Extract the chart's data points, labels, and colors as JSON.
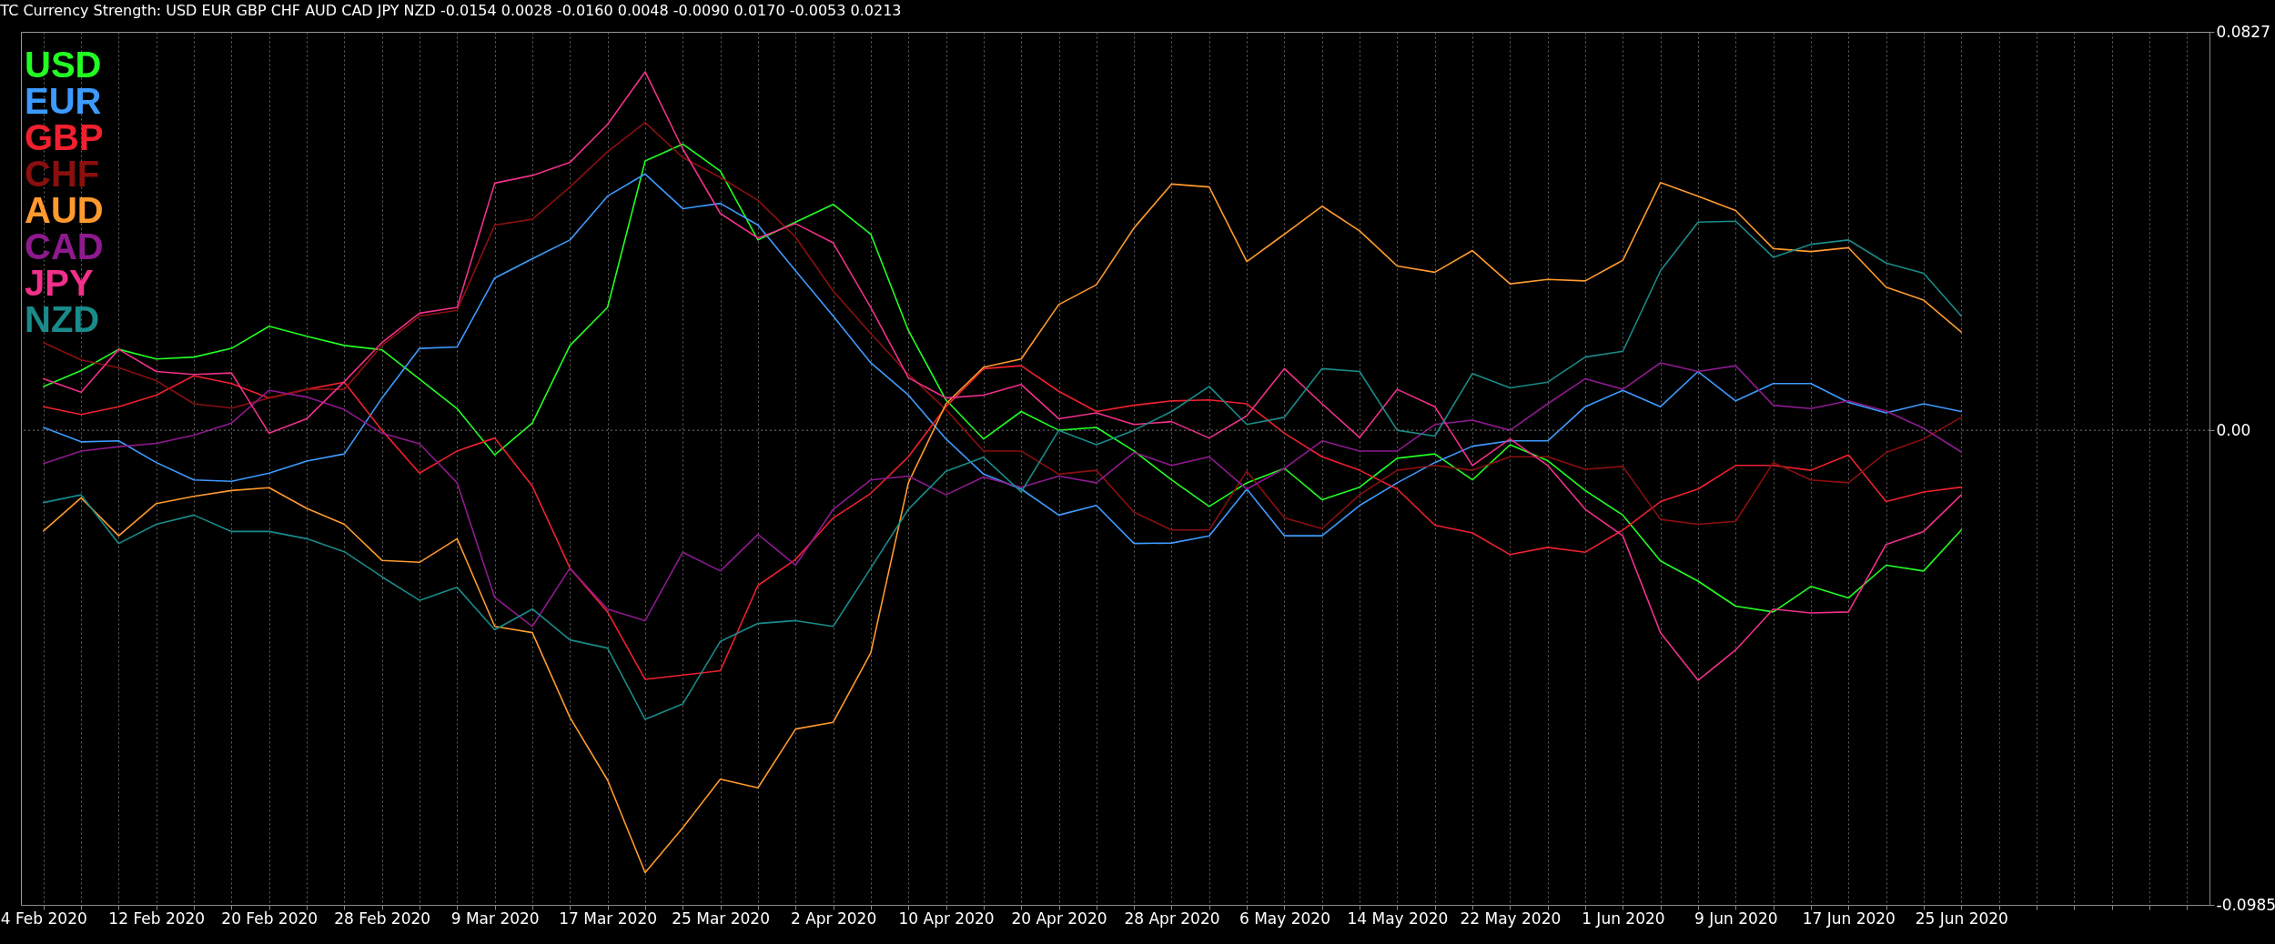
{
  "chart_data": {
    "type": "line",
    "title": "TC Currency Strength:   USD EUR GBP CHF AUD CAD JPY NZD -0.0154 0.0028 -0.0160 0.0048 -0.0090 0.0170 -0.0053 0.0213",
    "categories": [
      "4 Feb 2020",
      null,
      null,
      "12 Feb 2020",
      null,
      null,
      "20 Feb 2020",
      null,
      null,
      "28 Feb 2020",
      null,
      null,
      "9 Mar 2020",
      null,
      null,
      "17 Mar 2020",
      null,
      null,
      "25 Mar 2020",
      null,
      null,
      "2 Apr 2020",
      null,
      null,
      "10 Apr 2020",
      null,
      null,
      "20 Apr 2020",
      null,
      null,
      "28 Apr 2020",
      null,
      null,
      "6 May 2020",
      null,
      null,
      "14 May 2020",
      null,
      null,
      "22 May 2020",
      null,
      null,
      "1 Jun 2020",
      null,
      null,
      "9 Jun 2020",
      null,
      null,
      "17 Jun 2020",
      null,
      null,
      "25 Jun 2020",
      null,
      null,
      null,
      null,
      null,
      null
    ],
    "ylim": [
      -0.0985,
      0.0827
    ],
    "yticks": [
      0.0827,
      {
        "value": 0,
        "label": "0.00"
      },
      -0.0985
    ],
    "grid": "x",
    "legend": "top left",
    "line_style": "solid",
    "ref_lines": [
      {
        "axis": "y",
        "value": 0,
        "line_style": "dotted",
        "color": "#777777"
      }
    ],
    "series": [
      {
        "name": "USD",
        "color": "#22ff22",
        "values": [
          0.0091,
          0.0124,
          0.0168,
          0.0148,
          0.0152,
          0.017,
          0.0216,
          0.0195,
          0.0176,
          0.0167,
          0.0106,
          0.0045,
          -0.0051,
          0.0015,
          0.0176,
          0.0255,
          0.0559,
          0.0594,
          0.0538,
          0.0395,
          0.0432,
          0.0469,
          0.0407,
          0.0207,
          0.0063,
          -0.0018,
          0.0039,
          0,
          0.0006,
          -0.0043,
          -0.0103,
          -0.0158,
          -0.0109,
          -0.0079,
          -0.0144,
          -0.0118,
          -0.0058,
          -0.0049,
          -0.0103,
          -0.003,
          -0.0063,
          -0.0125,
          -0.0176,
          -0.0271,
          -0.0313,
          -0.0365,
          -0.0377,
          -0.0324,
          -0.0348,
          -0.028,
          -0.0292,
          -0.0207,
          null,
          null,
          null,
          null,
          null,
          null
        ]
      },
      {
        "name": "EUR",
        "color": "#3d9bff",
        "values": [
          0.0006,
          -0.0024,
          -0.0022,
          -0.0067,
          -0.0103,
          -0.0106,
          -0.0089,
          -0.0064,
          -0.0049,
          0.0067,
          0.017,
          0.0173,
          0.0316,
          0.0356,
          0.0395,
          0.0486,
          0.0532,
          0.046,
          0.0471,
          0.0426,
          0.0331,
          0.0237,
          0.014,
          0.0073,
          -0.0018,
          -0.0091,
          -0.0122,
          -0.0176,
          -0.0156,
          -0.0235,
          -0.0234,
          -0.0219,
          -0.0122,
          -0.0219,
          -0.0219,
          -0.0156,
          -0.0109,
          -0.0067,
          -0.0033,
          -0.0022,
          -0.0022,
          0.0049,
          0.0083,
          0.0049,
          0.0122,
          0.0061,
          0.0097,
          0.0097,
          0.0058,
          0.0036,
          0.0055,
          0.0039,
          null,
          null,
          null,
          null,
          null,
          null
        ]
      },
      {
        "name": "GBP",
        "color": "#f0202e",
        "values": [
          0.0049,
          0.0033,
          0.0049,
          0.0073,
          0.0113,
          0.0097,
          0.0067,
          0.0085,
          0.01,
          0,
          -0.0089,
          -0.0043,
          -0.0016,
          -0.0116,
          -0.0286,
          -0.0377,
          -0.0517,
          -0.0508,
          -0.0499,
          -0.0322,
          -0.0268,
          -0.0182,
          -0.0131,
          -0.0055,
          0.0049,
          0.0128,
          0.0134,
          0.0081,
          0.0039,
          0.0052,
          0.0061,
          0.0063,
          0.0055,
          -0.0006,
          -0.0055,
          -0.0083,
          -0.0122,
          -0.0197,
          -0.0213,
          -0.0258,
          -0.0243,
          -0.0253,
          -0.0207,
          -0.0148,
          -0.0122,
          -0.0073,
          -0.0073,
          -0.0083,
          -0.0051,
          -0.0148,
          -0.0128,
          -0.0118,
          null,
          null,
          null,
          null,
          null,
          null
        ]
      },
      {
        "name": "CHF",
        "color": "#8b0f0f",
        "values": [
          0.0182,
          0.0146,
          0.013,
          0.0103,
          0.0055,
          0.0046,
          0.0067,
          0.0085,
          0.0085,
          0.0176,
          0.0237,
          0.0249,
          0.0426,
          0.0438,
          0.0505,
          0.0578,
          0.0639,
          0.0566,
          0.0525,
          0.0477,
          0.0401,
          0.0289,
          0.0201,
          0.0116,
          0.0043,
          -0.0043,
          -0.0043,
          -0.0091,
          -0.0083,
          -0.017,
          -0.0207,
          -0.0207,
          -0.0085,
          -0.0182,
          -0.0204,
          -0.0134,
          -0.0083,
          -0.0073,
          -0.0083,
          -0.0055,
          -0.0055,
          -0.0081,
          -0.0075,
          -0.0185,
          -0.0195,
          -0.0189,
          -0.0067,
          -0.0103,
          -0.0109,
          -0.0046,
          -0.0018,
          0.0027,
          null,
          null,
          null,
          null,
          null,
          null
        ]
      },
      {
        "name": "AUD",
        "color": "#ff9a2e",
        "values": [
          -0.0209,
          -0.014,
          -0.0219,
          -0.0152,
          -0.0137,
          -0.0125,
          -0.0119,
          -0.0162,
          -0.0195,
          -0.027,
          -0.0274,
          -0.0225,
          -0.0407,
          -0.042,
          -0.0596,
          -0.0726,
          -0.0918,
          -0.0825,
          -0.0724,
          -0.0742,
          -0.062,
          -0.0606,
          -0.0462,
          -0.0109,
          0.0055,
          0.0131,
          0.0148,
          0.0261,
          0.0302,
          0.042,
          0.0511,
          0.0505,
          0.035,
          0.0407,
          0.0465,
          0.0414,
          0.0341,
          0.0328,
          0.0373,
          0.0304,
          0.0313,
          0.031,
          0.0353,
          0.0514,
          0.0486,
          0.0456,
          0.0377,
          0.0371,
          0.0379,
          0.0297,
          0.027,
          0.0204,
          null,
          null,
          null,
          null,
          null,
          null
        ]
      },
      {
        "name": "CAD",
        "color": "#8e1a8e",
        "values": [
          -0.0069,
          -0.0043,
          -0.0034,
          -0.0027,
          -0.001,
          0.0015,
          0.0083,
          0.0069,
          0.0043,
          -0.0006,
          -0.0028,
          -0.0109,
          -0.0347,
          -0.0407,
          -0.0286,
          -0.0371,
          -0.0395,
          -0.0253,
          -0.0292,
          -0.0216,
          -0.028,
          -0.0164,
          -0.0103,
          -0.0095,
          -0.0134,
          -0.0097,
          -0.0118,
          -0.0095,
          -0.0109,
          -0.0046,
          -0.0073,
          -0.0055,
          -0.0122,
          -0.0079,
          -0.0022,
          -0.0043,
          -0.0043,
          0.0012,
          0.0021,
          0,
          0.0055,
          0.0107,
          0.0085,
          0.014,
          0.0122,
          0.0134,
          0.0052,
          0.0045,
          0.0061,
          0.004,
          0.0004,
          -0.0045,
          null,
          null,
          null,
          null,
          null,
          null
        ]
      },
      {
        "name": "JPY",
        "color": "#f0308a",
        "values": [
          0.0107,
          0.0079,
          0.0168,
          0.0122,
          0.0116,
          0.0119,
          -0.0006,
          0.0024,
          0.0101,
          0.0182,
          0.0243,
          0.0255,
          0.0513,
          0.0529,
          0.0556,
          0.0635,
          0.0744,
          0.0584,
          0.045,
          0.0399,
          0.0429,
          0.0389,
          0.0255,
          0.0109,
          0.0067,
          0.0073,
          0.0095,
          0.0024,
          0.0036,
          0.0012,
          0.0018,
          -0.0016,
          0.003,
          0.0128,
          0.0055,
          -0.0015,
          0.0085,
          0.0049,
          -0.0073,
          -0.0018,
          -0.0073,
          -0.0164,
          -0.0219,
          -0.042,
          -0.0519,
          -0.0456,
          -0.0371,
          -0.0379,
          -0.0377,
          -0.0237,
          -0.021,
          -0.0134,
          null,
          null,
          null,
          null,
          null,
          null
        ]
      },
      {
        "name": "NZD",
        "color": "#1a8a8a",
        "values": [
          -0.015,
          -0.0134,
          -0.0235,
          -0.0195,
          -0.0176,
          -0.021,
          -0.021,
          -0.0225,
          -0.0252,
          -0.0304,
          -0.0353,
          -0.0326,
          -0.0414,
          -0.0371,
          -0.0435,
          -0.0452,
          -0.06,
          -0.0568,
          -0.0438,
          -0.0401,
          -0.0395,
          -0.0407,
          -0.0286,
          -0.0164,
          -0.0085,
          -0.0056,
          -0.0128,
          0,
          -0.003,
          0,
          0.0039,
          0.0091,
          0.0012,
          0.0027,
          0.0128,
          0.0122,
          0,
          -0.0012,
          0.0118,
          0.0088,
          0.01,
          0.0152,
          0.0164,
          0.0331,
          0.0432,
          0.0434,
          0.0359,
          0.0386,
          0.0395,
          0.0347,
          0.0326,
          0.0237,
          null,
          null,
          null,
          null,
          null,
          null
        ]
      }
    ]
  }
}
